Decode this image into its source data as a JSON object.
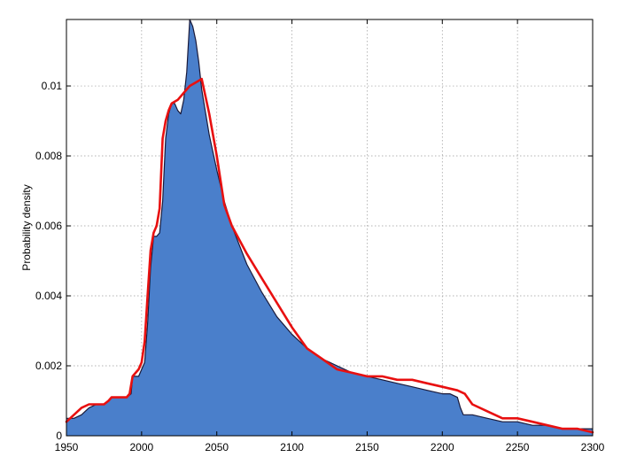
{
  "chart_data": {
    "type": "area",
    "title": "",
    "xlabel": "",
    "ylabel": "Probability density",
    "xlim": [
      1950,
      2300
    ],
    "ylim": [
      0,
      0.0119
    ],
    "grid": true,
    "x_ticks": [
      1950,
      2000,
      2050,
      2100,
      2150,
      2200,
      2250,
      2300
    ],
    "x_tick_labels": [
      "1950",
      "2000",
      "2050",
      "2100",
      "2150",
      "2200",
      "2250",
      "2300"
    ],
    "y_ticks": [
      0,
      0.002,
      0.004,
      0.006,
      0.008,
      0.01
    ],
    "y_tick_labels": [
      "0",
      "0.002",
      "0.004",
      "0.006",
      "0.008",
      "0.01"
    ],
    "series": [
      {
        "kind": "area",
        "color": "#4a7fcb",
        "edge_color": "#1a1a3a",
        "x": [
          1950,
          1955,
          1960,
          1965,
          1970,
          1975,
          1978,
          1980,
          1985,
          1990,
          1993,
          1994,
          1996,
          1998,
          2000,
          2002,
          2004,
          2006,
          2008,
          2010,
          2012,
          2014,
          2016,
          2018,
          2020,
          2022,
          2024,
          2026,
          2028,
          2030,
          2032,
          2034,
          2036,
          2038,
          2040,
          2045,
          2050,
          2055,
          2060,
          2070,
          2080,
          2090,
          2100,
          2110,
          2120,
          2130,
          2140,
          2150,
          2160,
          2170,
          2180,
          2190,
          2200,
          2205,
          2210,
          2212,
          2214,
          2216,
          2220,
          2230,
          2240,
          2250,
          2260,
          2270,
          2280,
          2290,
          2300
        ],
        "y": [
          0.0005,
          0.0005,
          0.0006,
          0.0008,
          0.0009,
          0.0009,
          0.001,
          0.0011,
          0.0011,
          0.0011,
          0.0012,
          0.0017,
          0.0017,
          0.0017,
          0.0019,
          0.0021,
          0.0032,
          0.0048,
          0.0057,
          0.0057,
          0.0058,
          0.0067,
          0.0085,
          0.0092,
          0.0095,
          0.0095,
          0.0093,
          0.0092,
          0.0096,
          0.0104,
          0.0119,
          0.0117,
          0.0113,
          0.0107,
          0.0099,
          0.0086,
          0.0076,
          0.0067,
          0.006,
          0.0049,
          0.0041,
          0.0034,
          0.0029,
          0.0025,
          0.0022,
          0.002,
          0.0018,
          0.0017,
          0.0016,
          0.0015,
          0.0014,
          0.0013,
          0.0012,
          0.0012,
          0.0011,
          0.0008,
          0.0006,
          0.0006,
          0.0006,
          0.0005,
          0.0004,
          0.0004,
          0.0003,
          0.0003,
          0.0002,
          0.0002,
          0.0002
        ]
      },
      {
        "kind": "line",
        "color": "#e81010",
        "x": [
          1950,
          1955,
          1960,
          1965,
          1970,
          1975,
          1978,
          1980,
          1985,
          1990,
          1992,
          1994,
          1996,
          1998,
          2000,
          2002,
          2004,
          2006,
          2008,
          2010,
          2012,
          2014,
          2016,
          2018,
          2020,
          2024,
          2028,
          2032,
          2036,
          2040,
          2045,
          2050,
          2055,
          2060,
          2070,
          2080,
          2090,
          2100,
          2110,
          2120,
          2130,
          2140,
          2150,
          2160,
          2170,
          2180,
          2190,
          2200,
          2210,
          2215,
          2220,
          2230,
          2240,
          2250,
          2260,
          2270,
          2280,
          2290,
          2300
        ],
        "y": [
          0.0004,
          0.0006,
          0.0008,
          0.0009,
          0.0009,
          0.0009,
          0.001,
          0.0011,
          0.0011,
          0.0011,
          0.0012,
          0.0017,
          0.0018,
          0.0019,
          0.0021,
          0.0027,
          0.004,
          0.0053,
          0.0058,
          0.006,
          0.0065,
          0.0085,
          0.009,
          0.0093,
          0.0095,
          0.0096,
          0.0098,
          0.01,
          0.0101,
          0.0102,
          0.0092,
          0.008,
          0.0066,
          0.006,
          0.0052,
          0.0045,
          0.0038,
          0.0031,
          0.0025,
          0.0022,
          0.0019,
          0.0018,
          0.0017,
          0.0017,
          0.0016,
          0.0016,
          0.0015,
          0.0014,
          0.0013,
          0.0012,
          0.0009,
          0.0007,
          0.0005,
          0.0005,
          0.0004,
          0.0003,
          0.0002,
          0.0002,
          0.0001
        ]
      }
    ]
  }
}
